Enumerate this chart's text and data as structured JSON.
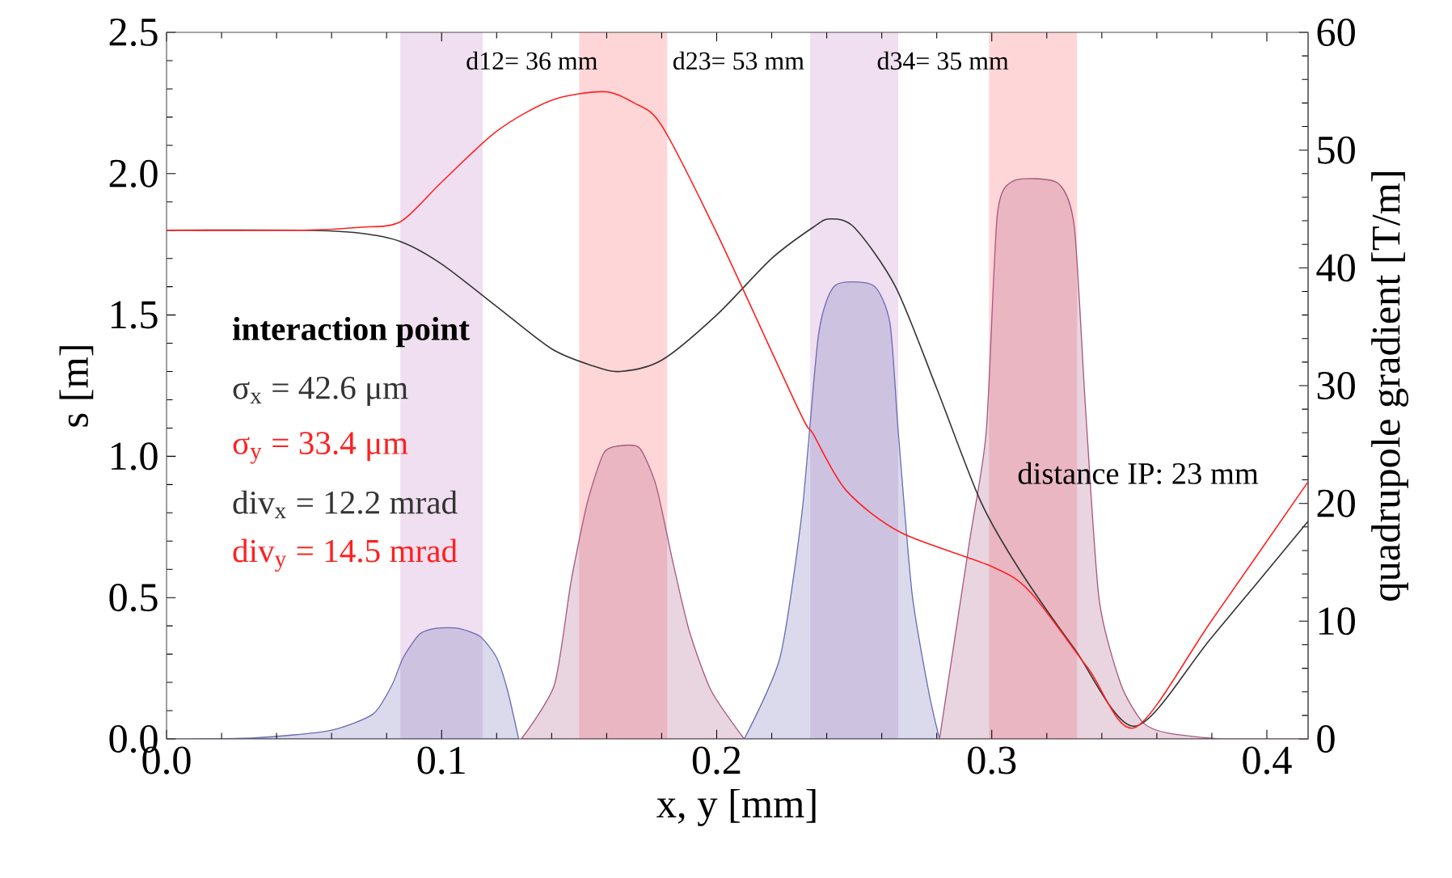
{
  "chart_data": {
    "type": "line",
    "xlabel": "x, y [mm]",
    "ylabel": "s [m]",
    "y2label": "quadrupole gradient [T/m]",
    "xlim": [
      0,
      0.415
    ],
    "xticks": [
      {
        "value": 0,
        "label": "0.0"
      },
      0.1,
      0.2,
      0.3,
      0.4
    ],
    "ylim": [
      0,
      2.5
    ],
    "yticks": [
      {
        "value": 0,
        "label": "0.0"
      },
      0.5,
      {
        "value": 1,
        "label": "1.0"
      },
      1.5,
      {
        "value": 2,
        "label": "2.0"
      },
      2.5
    ],
    "y2lim": [
      0,
      60
    ],
    "y2ticks": [
      0,
      10,
      20,
      30,
      40,
      50,
      60
    ],
    "bands": [
      {
        "axis": "x",
        "from": 0.085,
        "to": 0.115,
        "color": "#efdff0"
      },
      {
        "axis": "x",
        "from": 0.15,
        "to": 0.182,
        "color": "#ffd6d8"
      },
      {
        "axis": "x",
        "from": 0.234,
        "to": 0.266,
        "color": "#efdff0"
      },
      {
        "axis": "x",
        "from": 0.299,
        "to": 0.331,
        "color": "#ffd6d8"
      }
    ],
    "series": [
      {
        "type": "area",
        "axis": "y2",
        "color": "#6b6bb5",
        "x": [
          0,
          0.032,
          0.059,
          0.075,
          0.082,
          0.086,
          0.092,
          0.098,
          0.106,
          0.114,
          0.12,
          0.124,
          0.128
        ],
        "values": [
          0,
          0.1,
          0.7,
          2.1,
          4.6,
          6.9,
          8.9,
          9.4,
          9.4,
          8.7,
          6.9,
          4.1,
          0
        ]
      },
      {
        "type": "area",
        "axis": "y2",
        "color": "#a8587e",
        "x": [
          0.129,
          0.141,
          0.147,
          0.153,
          0.159,
          0.165,
          0.172,
          0.178,
          0.184,
          0.19,
          0.198,
          0.21
        ],
        "values": [
          0,
          4.6,
          13.3,
          20.1,
          24.3,
          24.9,
          24.7,
          21.5,
          15.1,
          9.2,
          4.1,
          0
        ]
      },
      {
        "type": "area",
        "axis": "y2",
        "color": "#6b6bb5",
        "x": [
          0.21,
          0.223,
          0.231,
          0.237,
          0.243,
          0.257,
          0.263,
          0.266,
          0.271,
          0.277,
          0.281
        ],
        "values": [
          0,
          6.9,
          19.2,
          34.3,
          38.5,
          38.5,
          35.3,
          26.1,
          12.4,
          4.1,
          0
        ]
      },
      {
        "type": "area",
        "axis": "y2",
        "color": "#a8587e",
        "x": [
          0.281,
          0.292,
          0.298,
          0.302,
          0.308,
          0.324,
          0.33,
          0.334,
          0.339,
          0.347,
          0.355,
          0.364,
          0.384,
          0.415
        ],
        "values": [
          0,
          16.9,
          26.1,
          44.5,
          47.4,
          47.2,
          43.5,
          28.4,
          11.9,
          4.6,
          1.4,
          0.5,
          0,
          0
        ]
      },
      {
        "axis": "y",
        "color": "#333333",
        "x": [
          0,
          0.05,
          0.07,
          0.085,
          0.1,
          0.12,
          0.14,
          0.155,
          0.165,
          0.18,
          0.2,
          0.22,
          0.235,
          0.241,
          0.25,
          0.265,
          0.28,
          0.296,
          0.31,
          0.33,
          0.352,
          0.38,
          0.415
        ],
        "values": [
          1.8,
          1.8,
          1.79,
          1.76,
          1.68,
          1.53,
          1.38,
          1.32,
          1.3,
          1.34,
          1.5,
          1.7,
          1.81,
          1.84,
          1.81,
          1.6,
          1.24,
          0.84,
          0.6,
          0.32,
          0.045,
          0.36,
          0.77
        ]
      },
      {
        "axis": "y",
        "color": "#ff2020",
        "x": [
          0,
          0.05,
          0.07,
          0.085,
          0.1,
          0.12,
          0.14,
          0.159,
          0.17,
          0.18,
          0.2,
          0.23,
          0.235,
          0.247,
          0.267,
          0.3,
          0.314,
          0.335,
          0.352,
          0.38,
          0.415
        ],
        "values": [
          1.8,
          1.8,
          1.81,
          1.83,
          1.97,
          2.15,
          2.26,
          2.29,
          2.25,
          2.17,
          1.79,
          1.16,
          1.08,
          0.88,
          0.73,
          0.61,
          0.52,
          0.25,
          0.04,
          0.42,
          0.91
        ]
      }
    ],
    "annotations": [
      "d12= 36 mm",
      "d23= 53 mm",
      "d34= 35 mm",
      "distance IP: 23 mm",
      "interaction point",
      "σ$_{x}$ = 42.6 μm",
      "σ$_{y}$ = 33.4 μm",
      "div$_{x}$ = 12.2 mrad",
      "div$_{y}$ = 14.5 mrad"
    ]
  }
}
